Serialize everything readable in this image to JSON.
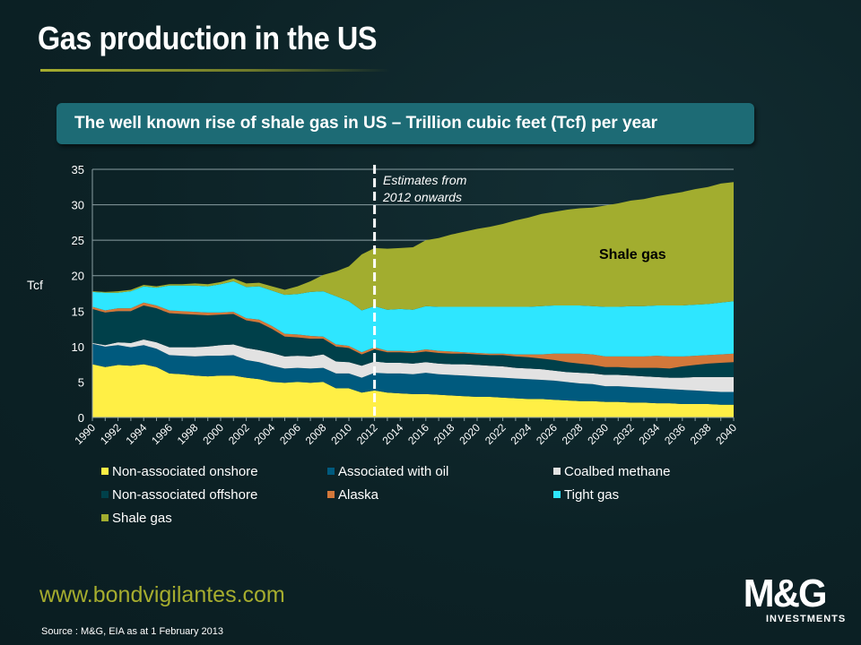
{
  "page": {
    "title": "Gas production in the US",
    "banner": "The well known rise of shale gas in US – Trillion cubic feet (Tcf) per year",
    "url": "www.bondvigilantes.com",
    "source": "Source : M&G, EIA as at 1 February 2013",
    "logo": "M&G INVESTMENTS",
    "logo_main": "M&G",
    "logo_sub": "INVESTMENTS",
    "background": "#0c2226",
    "accent": "#a6ad2e"
  },
  "chart_data": {
    "type": "area",
    "stacked": true,
    "title": "",
    "xlabel": "",
    "ylabel": "Tcf",
    "ylim": [
      0,
      35
    ],
    "yticks": [
      0,
      5,
      10,
      15,
      20,
      25,
      30,
      35
    ],
    "xlim": [
      1990,
      2040
    ],
    "xtick_labels": [
      "1990",
      "1992",
      "1994",
      "1996",
      "1998",
      "2000",
      "2002",
      "2004",
      "2006",
      "2008",
      "2010",
      "2012",
      "2014",
      "2016",
      "2018",
      "2020",
      "2022",
      "2024",
      "2026",
      "2028",
      "2030",
      "2032",
      "2034",
      "2036",
      "2038",
      "2040"
    ],
    "grid": true,
    "legend_position": "bottom",
    "annotations": [
      {
        "text": "Estimates from 2012 onwards",
        "x": 2012,
        "style": "dashed vertical line"
      },
      {
        "text": "Shale gas",
        "series": "Shale gas"
      }
    ],
    "x": [
      1990,
      1991,
      1992,
      1993,
      1994,
      1995,
      1996,
      1997,
      1998,
      1999,
      2000,
      2001,
      2002,
      2003,
      2004,
      2005,
      2006,
      2007,
      2008,
      2009,
      2010,
      2011,
      2012,
      2013,
      2014,
      2015,
      2016,
      2017,
      2018,
      2019,
      2020,
      2021,
      2022,
      2023,
      2024,
      2025,
      2026,
      2027,
      2028,
      2029,
      2030,
      2031,
      2032,
      2033,
      2034,
      2035,
      2036,
      2037,
      2038,
      2039,
      2040
    ],
    "series": [
      {
        "name": "Non-associated onshore",
        "color": "#ffef45",
        "values": [
          7.5,
          7.1,
          7.4,
          7.3,
          7.5,
          7.1,
          6.2,
          6.1,
          5.9,
          5.8,
          5.9,
          5.9,
          5.6,
          5.4,
          5.0,
          4.9,
          5.0,
          4.9,
          5.0,
          4.1,
          4.1,
          3.5,
          3.8,
          3.5,
          3.4,
          3.3,
          3.3,
          3.2,
          3.1,
          3.0,
          2.9,
          2.9,
          2.8,
          2.7,
          2.6,
          2.6,
          2.5,
          2.4,
          2.3,
          2.3,
          2.2,
          2.2,
          2.1,
          2.1,
          2.0,
          2.0,
          1.9,
          1.9,
          1.9,
          1.8,
          1.8
        ]
      },
      {
        "name": "Associated with oil",
        "color": "#005a7e",
        "values": [
          2.9,
          2.9,
          2.8,
          2.6,
          2.7,
          2.6,
          2.6,
          2.6,
          2.7,
          2.9,
          2.8,
          2.9,
          2.5,
          2.4,
          2.3,
          2.0,
          2.0,
          2.0,
          2.0,
          2.1,
          2.1,
          2.1,
          2.5,
          2.7,
          2.8,
          2.8,
          3.0,
          2.9,
          2.9,
          2.9,
          2.9,
          2.8,
          2.8,
          2.8,
          2.8,
          2.7,
          2.7,
          2.6,
          2.5,
          2.4,
          2.2,
          2.2,
          2.2,
          2.1,
          2.1,
          2.0,
          2.0,
          1.9,
          1.8,
          1.8,
          1.8
        ]
      },
      {
        "name": "Coalbed methane",
        "color": "#e2e2e2",
        "values": [
          0.1,
          0.2,
          0.4,
          0.6,
          0.8,
          0.9,
          1.1,
          1.2,
          1.3,
          1.3,
          1.5,
          1.5,
          1.7,
          1.7,
          1.8,
          1.7,
          1.7,
          1.7,
          1.9,
          1.7,
          1.6,
          1.7,
          1.6,
          1.5,
          1.5,
          1.5,
          1.5,
          1.5,
          1.5,
          1.6,
          1.6,
          1.6,
          1.6,
          1.5,
          1.5,
          1.5,
          1.4,
          1.4,
          1.5,
          1.5,
          1.6,
          1.6,
          1.6,
          1.6,
          1.6,
          1.6,
          1.7,
          1.9,
          2.0,
          2.1,
          2.1
        ]
      },
      {
        "name": "Non-associated offshore",
        "color": "#00404a",
        "values": [
          4.8,
          4.6,
          4.4,
          4.5,
          4.8,
          4.8,
          4.8,
          4.7,
          4.6,
          4.4,
          4.3,
          4.3,
          3.9,
          3.9,
          3.4,
          2.8,
          2.6,
          2.5,
          2.2,
          2.1,
          2.0,
          1.6,
          1.7,
          1.5,
          1.5,
          1.5,
          1.5,
          1.5,
          1.5,
          1.5,
          1.5,
          1.5,
          1.6,
          1.6,
          1.6,
          1.5,
          1.5,
          1.4,
          1.3,
          1.2,
          1.1,
          1.1,
          1.1,
          1.2,
          1.3,
          1.3,
          1.6,
          1.7,
          1.9,
          2.0,
          2.1
        ]
      },
      {
        "name": "Alaska",
        "color": "#d3783a",
        "values": [
          0.3,
          0.3,
          0.4,
          0.4,
          0.4,
          0.4,
          0.4,
          0.4,
          0.4,
          0.4,
          0.3,
          0.3,
          0.3,
          0.4,
          0.4,
          0.4,
          0.4,
          0.4,
          0.3,
          0.3,
          0.3,
          0.3,
          0.3,
          0.2,
          0.2,
          0.2,
          0.3,
          0.3,
          0.3,
          0.2,
          0.2,
          0.2,
          0.2,
          0.3,
          0.4,
          0.6,
          0.9,
          1.2,
          1.4,
          1.5,
          1.5,
          1.5,
          1.6,
          1.6,
          1.7,
          1.7,
          1.4,
          1.3,
          1.2,
          1.2,
          1.2
        ]
      },
      {
        "name": "Tight gas",
        "color": "#2ee6ff",
        "values": [
          2.1,
          2.5,
          2.2,
          2.4,
          2.3,
          2.5,
          3.5,
          3.6,
          3.7,
          3.7,
          4.0,
          4.3,
          4.4,
          4.7,
          5.0,
          5.5,
          5.7,
          6.2,
          6.4,
          6.8,
          6.3,
          5.9,
          5.8,
          5.8,
          5.9,
          5.9,
          6.1,
          6.2,
          6.3,
          6.4,
          6.5,
          6.6,
          6.6,
          6.7,
          6.7,
          6.8,
          6.8,
          6.8,
          6.8,
          6.8,
          7.0,
          7.0,
          7.1,
          7.1,
          7.1,
          7.2,
          7.2,
          7.2,
          7.2,
          7.3,
          7.4
        ]
      },
      {
        "name": "Shale gas",
        "color": "#a2ad2f",
        "values": [
          0.1,
          0.1,
          0.2,
          0.2,
          0.2,
          0.2,
          0.2,
          0.2,
          0.3,
          0.3,
          0.3,
          0.4,
          0.5,
          0.5,
          0.6,
          0.7,
          1.1,
          1.5,
          2.3,
          3.5,
          4.9,
          7.9,
          8.2,
          8.6,
          8.6,
          8.8,
          9.3,
          9.7,
          10.2,
          10.6,
          11.0,
          11.3,
          11.7,
          12.2,
          12.6,
          13.0,
          13.2,
          13.5,
          13.7,
          13.9,
          14.3,
          14.6,
          14.9,
          15.1,
          15.4,
          15.7,
          16.0,
          16.3,
          16.5,
          16.8,
          16.8
        ]
      }
    ]
  }
}
